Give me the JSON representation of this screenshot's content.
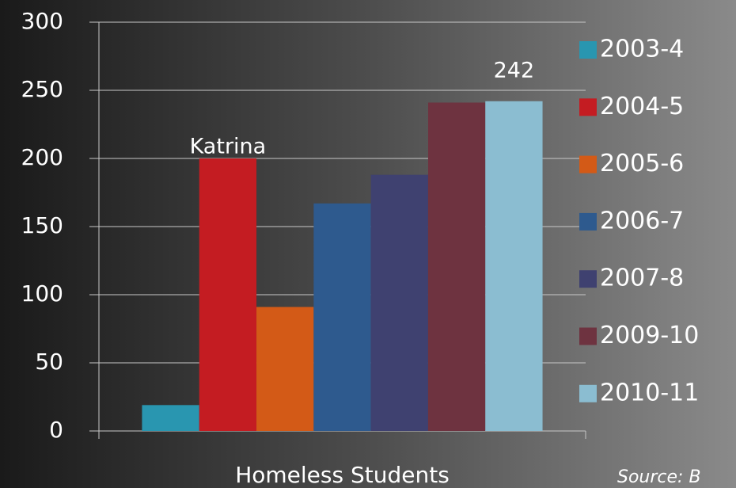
{
  "chart_data": {
    "type": "bar",
    "categories": [
      "Homeless Students"
    ],
    "series": [
      {
        "name": "2003-4",
        "color": "#2996b0",
        "values": [
          19
        ]
      },
      {
        "name": "2004-5",
        "color": "#c41c22",
        "values": [
          200
        ],
        "annotation": "Katrina"
      },
      {
        "name": "2005-6",
        "color": "#d35a17",
        "values": [
          91
        ]
      },
      {
        "name": "2006-7",
        "color": "#2e5a8e",
        "values": [
          167
        ]
      },
      {
        "name": "2007-8",
        "color": "#3f4170",
        "values": [
          188
        ]
      },
      {
        "name": "2009-10",
        "color": "#6e3340",
        "values": [
          241
        ]
      },
      {
        "name": "2010-11",
        "color": "#8bbdd1",
        "values": [
          242
        ],
        "value_label": true
      }
    ],
    "ylim": [
      0,
      300
    ],
    "yticks": [
      0,
      50,
      100,
      150,
      200,
      250,
      300
    ],
    "grid": true,
    "legend": "right",
    "source": "Source: B"
  }
}
